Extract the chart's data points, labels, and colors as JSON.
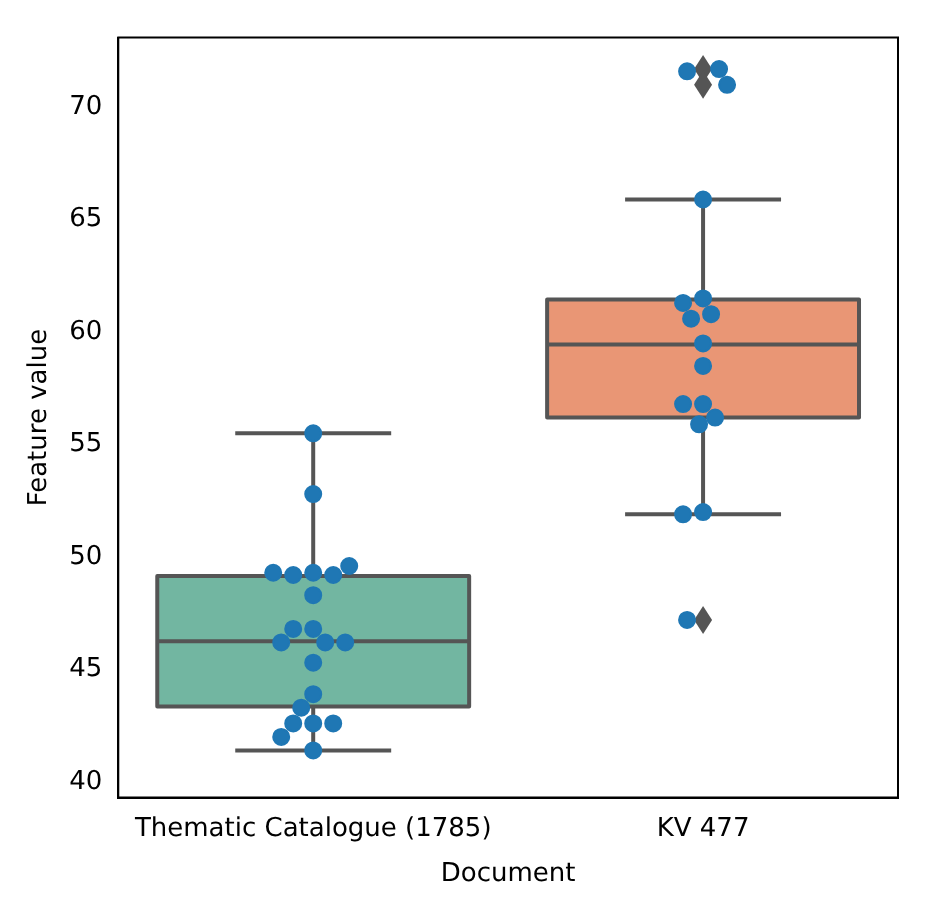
{
  "chart_data": {
    "type": "box",
    "xlabel": "Document",
    "ylabel": "Feature value",
    "categories": [
      "Thematic Catalogue (1785)",
      "KV 477"
    ],
    "colors": [
      "#72b6a1",
      "#e99675"
    ],
    "boxes": [
      {
        "low": 41.4,
        "q1": 43.35,
        "median": 46.25,
        "q3": 49.15,
        "high": 55.5
      },
      {
        "low": 51.9,
        "q1": 56.2,
        "median": 59.45,
        "q3": 61.45,
        "high": 65.9,
        "outliers": [
          71.7,
          71.0,
          47.2
        ]
      }
    ],
    "series": [
      {
        "type": "scatter",
        "color": "#1f77b4",
        "x": [
          "Thematic Catalogue (1785)",
          "Thematic Catalogue (1785)",
          "Thematic Catalogue (1785)",
          "Thematic Catalogue (1785)",
          "Thematic Catalogue (1785)",
          "Thematic Catalogue (1785)",
          "Thematic Catalogue (1785)",
          "Thematic Catalogue (1785)",
          "Thematic Catalogue (1785)",
          "Thematic Catalogue (1785)",
          "Thematic Catalogue (1785)",
          "Thematic Catalogue (1785)",
          "Thematic Catalogue (1785)",
          "Thematic Catalogue (1785)",
          "Thematic Catalogue (1785)",
          "Thematic Catalogue (1785)",
          "Thematic Catalogue (1785)",
          "Thematic Catalogue (1785)",
          "Thematic Catalogue (1785)",
          "Thematic Catalogue (1785)",
          "Thematic Catalogue (1785)",
          "KV 477",
          "KV 477",
          "KV 477",
          "KV 477",
          "KV 477",
          "KV 477",
          "KV 477",
          "KV 477",
          "KV 477",
          "KV 477",
          "KV 477",
          "KV 477",
          "KV 477",
          "KV 477",
          "KV 477",
          "KV 477",
          "KV 477"
        ],
        "values": [
          55.5,
          52.8,
          49.3,
          49.2,
          49.2,
          49.3,
          49.6,
          48.3,
          46.8,
          46.8,
          46.2,
          46.2,
          46.2,
          45.3,
          43.9,
          43.3,
          42.6,
          42.6,
          42.6,
          42.0,
          41.4,
          71.6,
          71.7,
          71.0,
          65.9,
          61.5,
          61.3,
          60.8,
          60.6,
          59.5,
          58.5,
          56.8,
          56.8,
          56.2,
          55.9,
          52.0,
          51.9,
          47.2
        ]
      }
    ],
    "ylim": [
      39.3,
      73.1
    ],
    "yticks": [
      40,
      45,
      50,
      55,
      60,
      65,
      70
    ],
    "marker": "circle",
    "grid": false,
    "legend": false
  }
}
